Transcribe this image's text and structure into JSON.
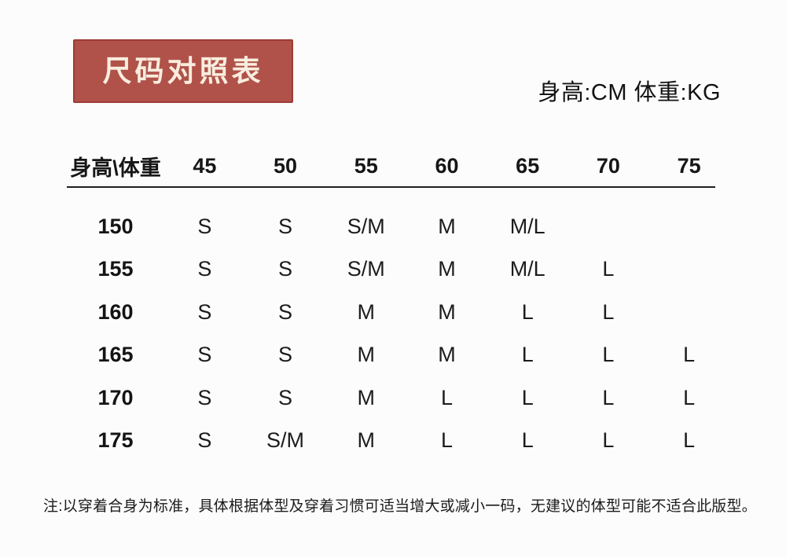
{
  "colors": {
    "title_bg": "#b0524a",
    "title_border": "#9d3c34",
    "title_text": "#f8edde",
    "text": "#1a1a1a",
    "background": "#fcfcfc"
  },
  "chart_data": {
    "type": "table",
    "title": "尺码对照表",
    "units_label": "身高:CM 体重:KG",
    "corner_header": "身高\\体重",
    "columns": [
      "45",
      "50",
      "55",
      "60",
      "65",
      "70",
      "75"
    ],
    "rows": [
      {
        "height": "150",
        "sizes": [
          "S",
          "S",
          "S/M",
          "M",
          "M/L",
          "",
          ""
        ]
      },
      {
        "height": "155",
        "sizes": [
          "S",
          "S",
          "S/M",
          "M",
          "M/L",
          "L",
          ""
        ]
      },
      {
        "height": "160",
        "sizes": [
          "S",
          "S",
          "M",
          "M",
          "L",
          "L",
          ""
        ]
      },
      {
        "height": "165",
        "sizes": [
          "S",
          "S",
          "M",
          "M",
          "L",
          "L",
          "L"
        ]
      },
      {
        "height": "170",
        "sizes": [
          "S",
          "S",
          "M",
          "L",
          "L",
          "L",
          "L"
        ]
      },
      {
        "height": "175",
        "sizes": [
          "S",
          "S/M",
          "M",
          "L",
          "L",
          "L",
          "L"
        ]
      }
    ],
    "note": "注:以穿着合身为标准，具体根据体型及穿着习惯可适当增大或减小一码，无建议的体型可能不适合此版型。"
  }
}
